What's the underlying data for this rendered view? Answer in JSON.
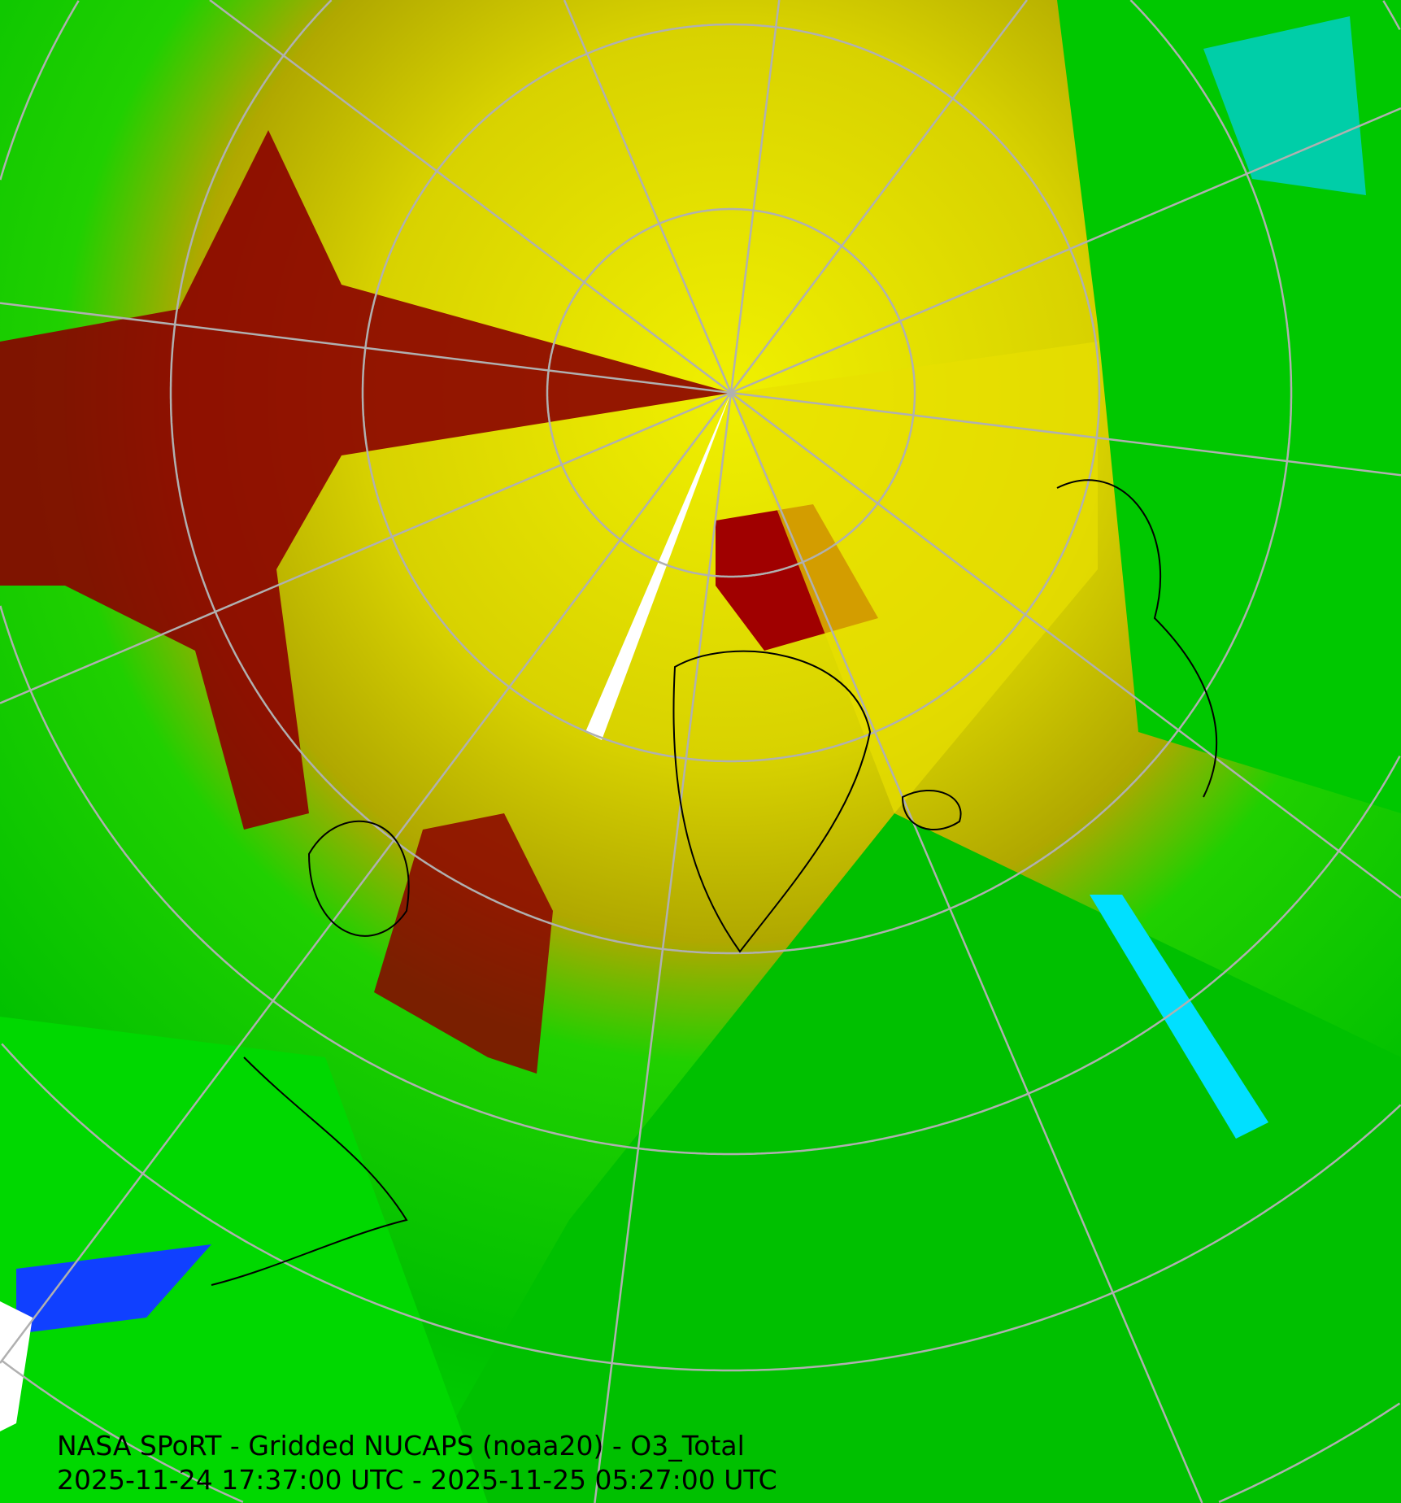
{
  "product": {
    "title": "NASA SPoRT - Gridded NUCAPS (noaa20) - O3_Total",
    "time_range": "2025-11-24 17:37:00 UTC - 2025-11-25 05:27:00 UTC"
  },
  "map": {
    "projection": "north polar stereographic",
    "variable": "O3_Total",
    "colors": {
      "very_high": "#8b0000",
      "high": "#e00000",
      "mid_high": "#f0f000",
      "mid": "#a09a00",
      "low": "#00e000",
      "lower": "#00a000",
      "very_low": "#00e0ff",
      "lowest": "#1040ff",
      "missing": "#ffffff",
      "grid_lines": "#b0b0b0",
      "coastlines": "#000000"
    }
  }
}
